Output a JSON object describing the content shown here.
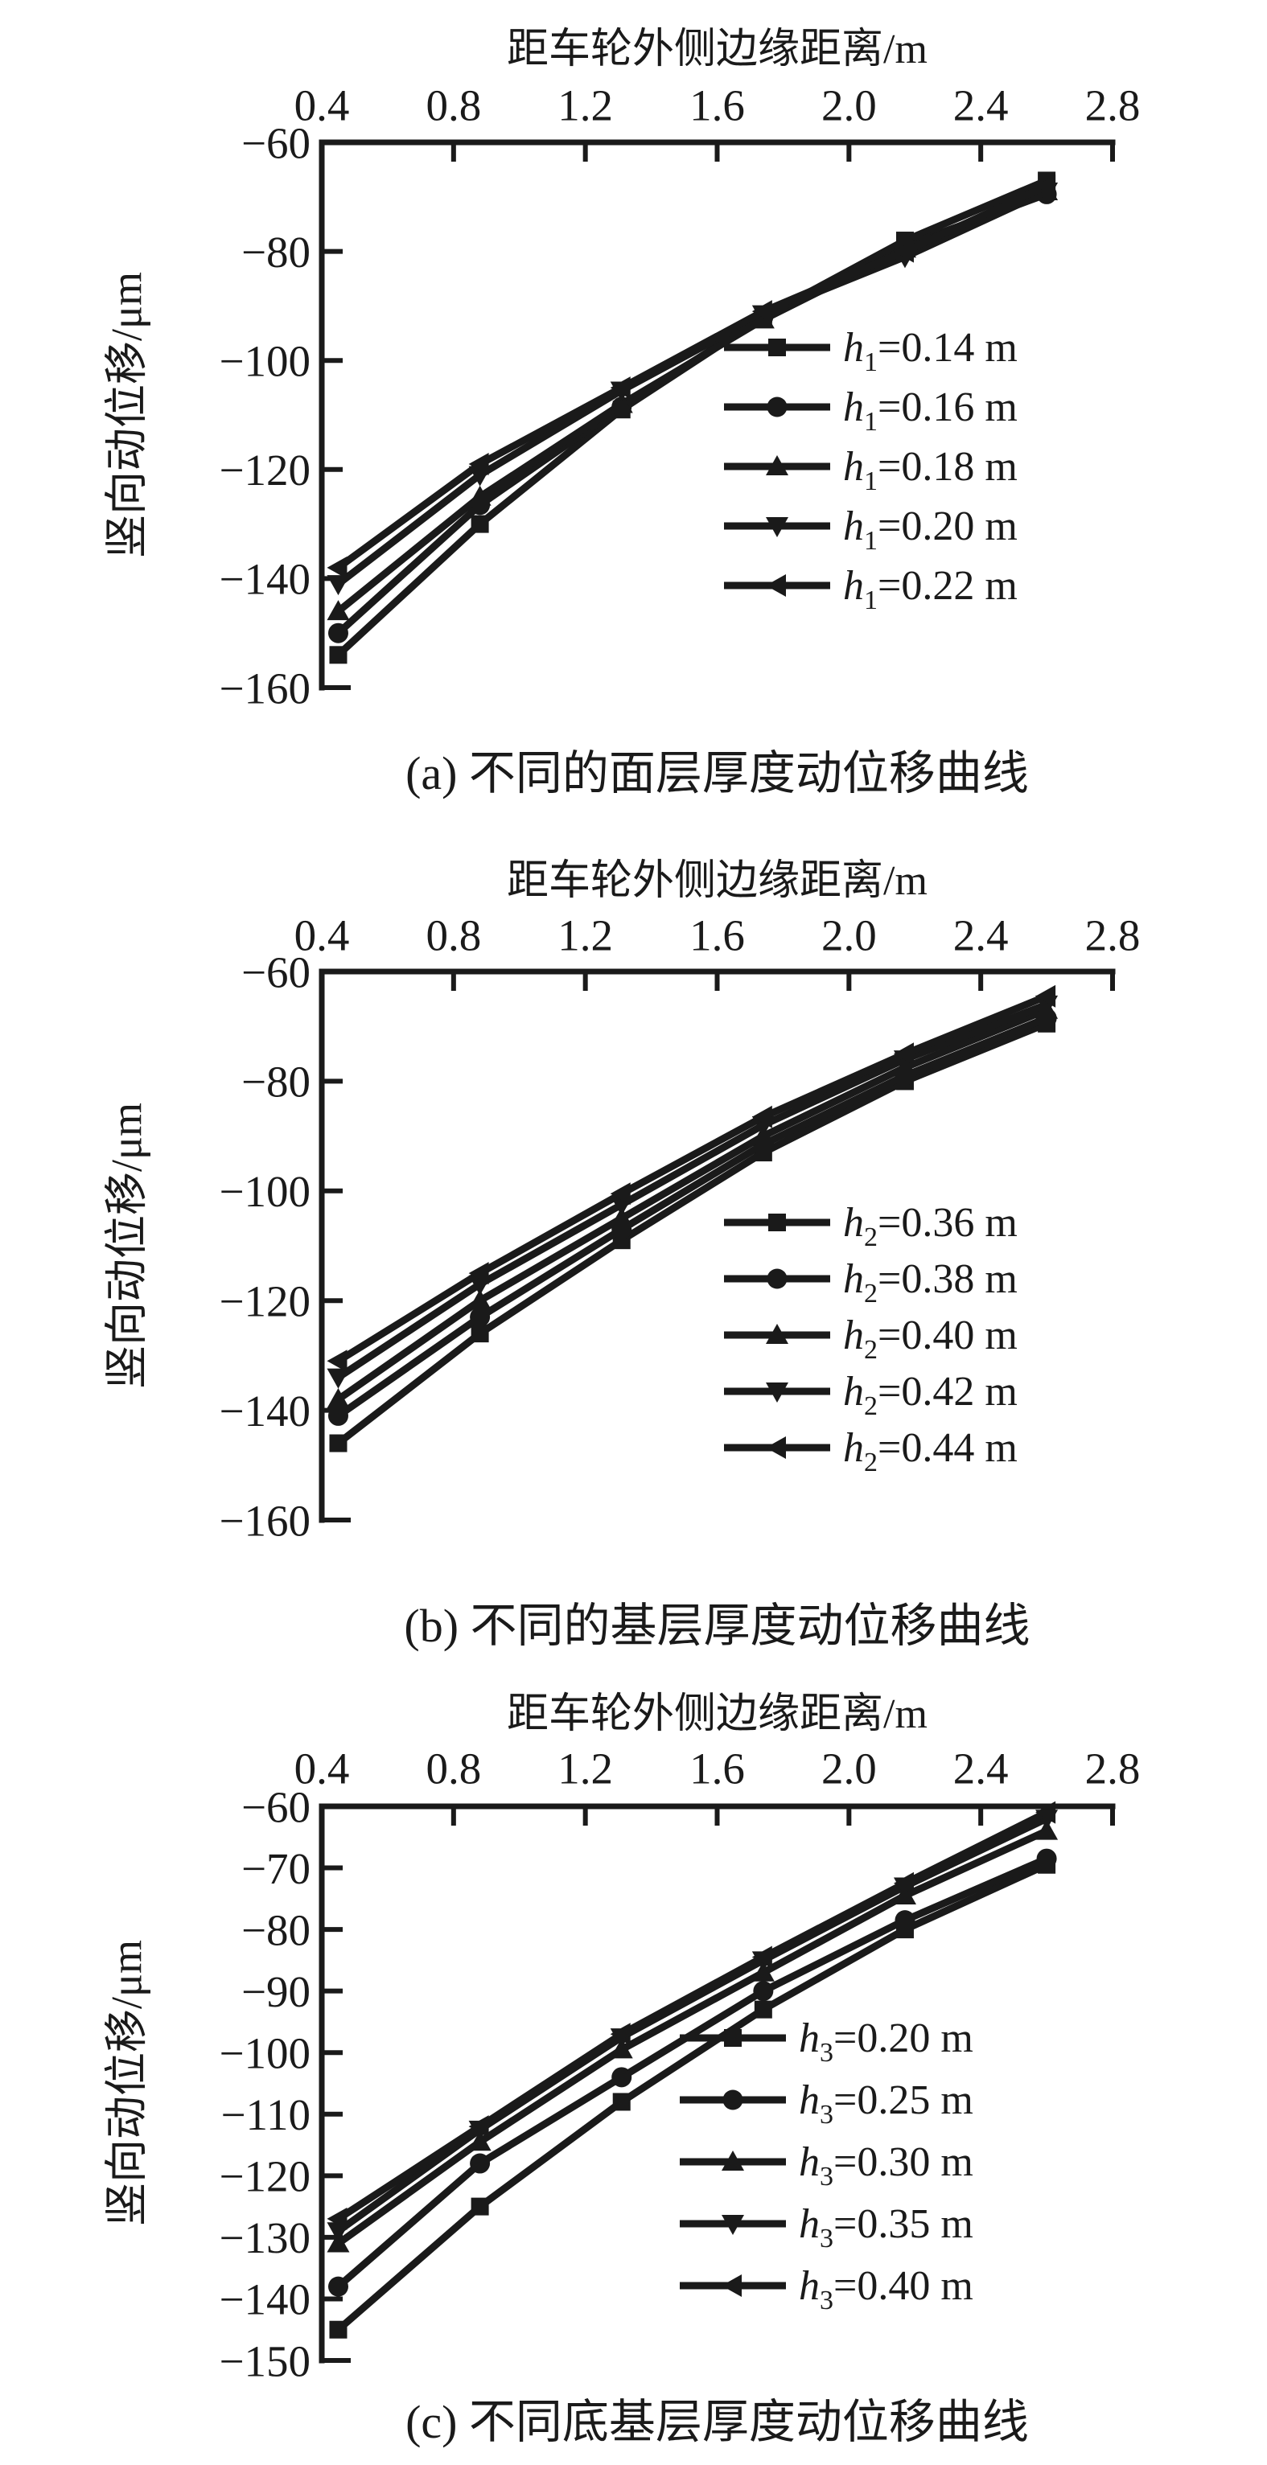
{
  "page": {
    "background": "#ffffff",
    "ink_color": "#1a1a1a"
  },
  "chart_data": [
    {
      "id": "a",
      "type": "line",
      "x_axis_title": "距车轮外侧边缘距离/m",
      "y_axis_title": "竖向动位移/μm",
      "caption": "(a) 不同的面层厚度动位移曲线",
      "xlim": [
        0.4,
        2.8
      ],
      "ylim": [
        -160,
        -60
      ],
      "x_tick_labels": [
        "0.4",
        "0.8",
        "1.2",
        "1.6",
        "2.0",
        "2.4",
        "2.8"
      ],
      "x_ticks": [
        0.4,
        0.8,
        1.2,
        1.6,
        2.0,
        2.4,
        2.8
      ],
      "y_tick_labels": [
        "−60",
        "−80",
        "−100",
        "−120",
        "−140",
        "−160"
      ],
      "y_ticks": [
        -60,
        -80,
        -100,
        -120,
        -140,
        -160
      ],
      "grid": false,
      "legend_position": "inside-right-center",
      "x": [
        0.45,
        0.88,
        1.31,
        1.74,
        2.17,
        2.6
      ],
      "series": [
        {
          "label": "h1=0.14 m",
          "var": "h",
          "sub": "1",
          "rest": "=0.14 m",
          "marker": "square",
          "values": [
            -154,
            -130,
            -109,
            -92,
            -78,
            -67
          ]
        },
        {
          "label": "h1=0.16 m",
          "var": "h",
          "sub": "1",
          "rest": "=0.16 m",
          "marker": "circle",
          "values": [
            -150,
            -126.5,
            -108.5,
            -92,
            -79,
            -69.5
          ]
        },
        {
          "label": "h1=0.18 m",
          "var": "h",
          "sub": "1",
          "rest": "=0.18 m",
          "marker": "triangle-up",
          "values": [
            -146,
            -125,
            -108,
            -92.5,
            -79.5,
            -69
          ]
        },
        {
          "label": "h1=0.20 m",
          "var": "h",
          "sub": "1",
          "rest": "=0.20 m",
          "marker": "triangle-down",
          "values": [
            -141,
            -121,
            -105.5,
            -91.5,
            -81,
            -69
          ]
        },
        {
          "label": "h1=0.22 m",
          "var": "h",
          "sub": "1",
          "rest": "=0.22 m",
          "marker": "triangle-left",
          "values": [
            -138,
            -119,
            -105,
            -91,
            -80,
            -68
          ]
        }
      ]
    },
    {
      "id": "b",
      "type": "line",
      "x_axis_title": "距车轮外侧边缘距离/m",
      "y_axis_title": "竖向动位移/μm",
      "caption": "(b) 不同的基层厚度动位移曲线",
      "xlim": [
        0.4,
        2.8
      ],
      "ylim": [
        -160,
        -60
      ],
      "x_tick_labels": [
        "0.4",
        "0.8",
        "1.2",
        "1.6",
        "2.0",
        "2.4",
        "2.8"
      ],
      "x_ticks": [
        0.4,
        0.8,
        1.2,
        1.6,
        2.0,
        2.4,
        2.8
      ],
      "y_tick_labels": [
        "−60",
        "−80",
        "−100",
        "−120",
        "−140",
        "−160"
      ],
      "y_ticks": [
        -60,
        -80,
        -100,
        -120,
        -140,
        -160
      ],
      "grid": false,
      "legend_position": "inside-right-center",
      "x": [
        0.45,
        0.88,
        1.31,
        1.74,
        2.17,
        2.6
      ],
      "series": [
        {
          "label": "h2=0.36 m",
          "var": "h",
          "sub": "2",
          "rest": "=0.36 m",
          "marker": "square",
          "values": [
            -146,
            -126,
            -109,
            -93,
            -80,
            -69.5
          ]
        },
        {
          "label": "h2=0.38 m",
          "var": "h",
          "sub": "2",
          "rest": "=0.38 m",
          "marker": "circle",
          "values": [
            -141,
            -123,
            -107,
            -91.5,
            -79,
            -68.5
          ]
        },
        {
          "label": "h2=0.40 m",
          "var": "h",
          "sub": "2",
          "rest": "=0.40 m",
          "marker": "triangle-up",
          "values": [
            -138,
            -120,
            -105,
            -90,
            -77.5,
            -67
          ]
        },
        {
          "label": "h2=0.42 m",
          "var": "h",
          "sub": "2",
          "rest": "=0.42 m",
          "marker": "triangle-down",
          "values": [
            -134,
            -117,
            -102.5,
            -88,
            -76,
            -66
          ]
        },
        {
          "label": "h2=0.44 m",
          "var": "h",
          "sub": "2",
          "rest": "=0.44 m",
          "marker": "triangle-left",
          "values": [
            -131,
            -115,
            -100.5,
            -86.5,
            -75,
            -64.5
          ]
        }
      ]
    },
    {
      "id": "c",
      "type": "line",
      "x_axis_title": "距车轮外侧边缘距离/m",
      "y_axis_title": "竖向动位移/μm",
      "caption": "(c) 不同底基层厚度动位移曲线",
      "xlim": [
        0.4,
        2.8
      ],
      "ylim": [
        -150,
        -60
      ],
      "x_tick_labels": [
        "0.4",
        "0.8",
        "1.2",
        "1.6",
        "2.0",
        "2.4",
        "2.8"
      ],
      "x_ticks": [
        0.4,
        0.8,
        1.2,
        1.6,
        2.0,
        2.4,
        2.8
      ],
      "y_tick_labels": [
        "−60",
        "−70",
        "−80",
        "−90",
        "−100",
        "−110",
        "−120",
        "−130",
        "−140",
        "−150"
      ],
      "y_ticks": [
        -60,
        -70,
        -80,
        -90,
        -100,
        -110,
        -120,
        -130,
        -140,
        -150
      ],
      "grid": false,
      "legend_position": "inside-right-center",
      "x": [
        0.45,
        0.88,
        1.31,
        1.74,
        2.17,
        2.6
      ],
      "series": [
        {
          "label": "h3=0.20 m",
          "var": "h",
          "sub": "3",
          "rest": "=0.20 m",
          "marker": "square",
          "values": [
            -145,
            -125,
            -108,
            -93,
            -80,
            -69.5
          ]
        },
        {
          "label": "h3=0.25 m",
          "var": "h",
          "sub": "3",
          "rest": "=0.25 m",
          "marker": "circle",
          "values": [
            -138,
            -118,
            -104,
            -90,
            -78.5,
            -68.5
          ]
        },
        {
          "label": "h3=0.30 m",
          "var": "h",
          "sub": "3",
          "rest": "=0.30 m",
          "marker": "triangle-up",
          "values": [
            -131,
            -114.5,
            -99.5,
            -87,
            -74.5,
            -64
          ]
        },
        {
          "label": "h3=0.35 m",
          "var": "h",
          "sub": "3",
          "rest": "=0.35 m",
          "marker": "triangle-down",
          "values": [
            -129,
            -112.5,
            -97.5,
            -85,
            -73,
            -62
          ]
        },
        {
          "label": "h3=0.40 m",
          "var": "h",
          "sub": "3",
          "rest": "=0.40 m",
          "marker": "triangle-left",
          "values": [
            -127,
            -112,
            -97,
            -84.5,
            -72.5,
            -61
          ]
        }
      ]
    }
  ]
}
